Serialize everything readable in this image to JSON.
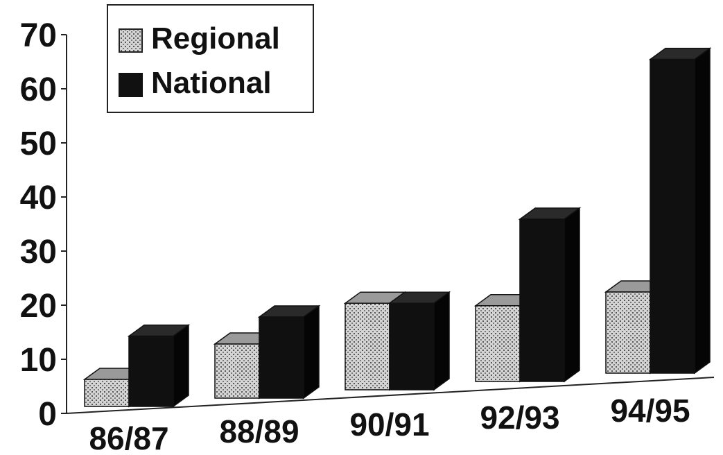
{
  "chart_data": {
    "type": "bar",
    "categories": [
      "86/87",
      "88/89",
      "90/91",
      "92/93",
      "94/95"
    ],
    "series": [
      {
        "name": "Regional",
        "values": [
          5,
          10,
          16,
          14,
          15
        ]
      },
      {
        "name": "National",
        "values": [
          13,
          15,
          16,
          30,
          58
        ]
      }
    ],
    "ylim": [
      0,
      70
    ],
    "yticks": [
      "0",
      "10",
      "20",
      "30",
      "40",
      "50",
      "60",
      "70"
    ],
    "grid": false,
    "legend_position": "top-left",
    "style": "3d-columns",
    "colors": {
      "regional": "#c9c9c9",
      "national": "#111111"
    }
  }
}
